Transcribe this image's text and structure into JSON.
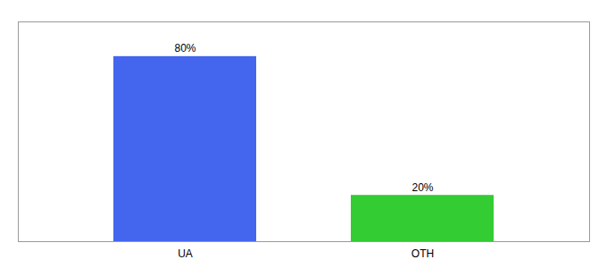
{
  "chart_data": {
    "type": "bar",
    "categories": [
      "UA",
      "OTH"
    ],
    "values": [
      80,
      20
    ],
    "value_labels": [
      "80%",
      "20%"
    ],
    "colors": [
      "#4466ee",
      "#33cc33"
    ],
    "ylim": [
      0,
      95
    ],
    "data_labels": true,
    "tick_labels": "x",
    "grid": false
  }
}
